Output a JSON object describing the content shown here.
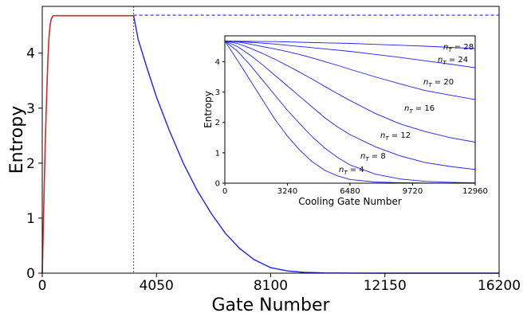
{
  "chart_data": [
    {
      "type": "line",
      "title": "",
      "xlabel": "Gate Number",
      "ylabel": "Entropy",
      "xlim": [
        0,
        16200
      ],
      "ylim": [
        0,
        4.85
      ],
      "xticks": [
        0,
        4050,
        8100,
        12150,
        16200
      ],
      "xtick_labels": [
        "0",
        "4050",
        "8100",
        "12150",
        "16200"
      ],
      "yticks": [
        0,
        1,
        2,
        3,
        4
      ],
      "ytick_labels": [
        "0",
        "1",
        "2",
        "3",
        "4"
      ],
      "vertical_marker_x": 3240,
      "colors": {
        "heating": "#d62728",
        "cooling": "#1f1fff",
        "reference": "#1f1fff",
        "marker": "#555555"
      },
      "series": [
        {
          "style": "solid-red",
          "x": [
            0,
            40,
            80,
            120,
            160,
            200,
            240,
            280,
            320,
            360,
            400,
            500,
            700,
            1000,
            1500,
            2000,
            2500,
            3000,
            3240
          ],
          "y": [
            0,
            0.9,
            1.8,
            2.6,
            3.3,
            3.9,
            4.3,
            4.52,
            4.62,
            4.66,
            4.68,
            4.68,
            4.68,
            4.68,
            4.68,
            4.68,
            4.68,
            4.68,
            4.68
          ]
        },
        {
          "style": "dashed-blue",
          "x": [
            3240,
            16200
          ],
          "y": [
            4.69,
            4.69
          ]
        },
        {
          "style": "solid-blue",
          "x": [
            3240,
            3400,
            3700,
            4050,
            4500,
            5000,
            5500,
            6000,
            6500,
            7000,
            7500,
            8100,
            8700,
            9300,
            10000,
            11000,
            12150,
            16200
          ],
          "y": [
            4.68,
            4.25,
            3.75,
            3.2,
            2.6,
            2.0,
            1.5,
            1.08,
            0.72,
            0.45,
            0.25,
            0.1,
            0.04,
            0.015,
            0.005,
            0.001,
            0.0,
            0.0
          ]
        }
      ]
    },
    {
      "type": "line",
      "title": "",
      "xlabel": "Cooling Gate Number",
      "ylabel": "Entropy",
      "xlim": [
        0,
        12960
      ],
      "ylim": [
        0,
        4.85
      ],
      "xticks": [
        0,
        3240,
        6480,
        9720,
        12960
      ],
      "xtick_labels": [
        "0",
        "3240",
        "6480",
        "9720",
        "12960"
      ],
      "yticks": [
        0,
        1,
        2,
        3,
        4
      ],
      "ytick_labels": [
        "0",
        "1",
        "2",
        "3",
        "4"
      ],
      "line_color": "#1f1fff",
      "series_labels_prefix": "n",
      "series_labels_sub": "T",
      "series": [
        {
          "label_value": "= 4",
          "x": [
            0,
            648,
            1296,
            1944,
            2592,
            3240,
            3888,
            4536,
            5184,
            5832,
            6480,
            7776,
            9072,
            10368,
            11664,
            12960
          ],
          "y": [
            4.68,
            4.05,
            3.4,
            2.75,
            2.1,
            1.55,
            1.08,
            0.7,
            0.42,
            0.24,
            0.12,
            0.04,
            0.015,
            0.005,
            0.001,
            0.0
          ]
        },
        {
          "label_value": "= 8",
          "x": [
            0,
            648,
            1296,
            1944,
            2592,
            3240,
            3888,
            4536,
            5184,
            5832,
            6480,
            7776,
            9072,
            10368,
            11664,
            12960
          ],
          "y": [
            4.68,
            4.35,
            3.9,
            3.4,
            2.9,
            2.4,
            1.95,
            1.52,
            1.15,
            0.85,
            0.6,
            0.3,
            0.14,
            0.06,
            0.03,
            0.01
          ]
        },
        {
          "label_value": "= 12",
          "x": [
            0,
            648,
            1296,
            1944,
            2592,
            3240,
            3888,
            4536,
            5184,
            5832,
            6480,
            7776,
            9072,
            10368,
            11664,
            12960
          ],
          "y": [
            4.68,
            4.5,
            4.22,
            3.9,
            3.55,
            3.2,
            2.85,
            2.5,
            2.15,
            1.85,
            1.6,
            1.2,
            0.9,
            0.68,
            0.55,
            0.45
          ]
        },
        {
          "label_value": "= 16",
          "x": [
            0,
            648,
            1296,
            1944,
            2592,
            3240,
            3888,
            4536,
            5184,
            5832,
            6480,
            7776,
            9072,
            10368,
            11664,
            12960
          ],
          "y": [
            4.68,
            4.6,
            4.45,
            4.27,
            4.08,
            3.87,
            3.65,
            3.42,
            3.18,
            2.95,
            2.72,
            2.3,
            1.95,
            1.7,
            1.5,
            1.35
          ]
        },
        {
          "label_value": "= 20",
          "x": [
            0,
            648,
            1296,
            1944,
            2592,
            3240,
            3888,
            4536,
            5184,
            5832,
            6480,
            7776,
            9072,
            10368,
            11664,
            12960
          ],
          "y": [
            4.68,
            4.65,
            4.58,
            4.5,
            4.42,
            4.33,
            4.23,
            4.12,
            4.0,
            3.88,
            3.75,
            3.5,
            3.27,
            3.05,
            2.9,
            2.75
          ]
        },
        {
          "label_value": "= 24",
          "x": [
            0,
            1296,
            2592,
            3888,
            5184,
            6480,
            7776,
            9072,
            10368,
            11664,
            12960
          ],
          "y": [
            4.68,
            4.64,
            4.58,
            4.5,
            4.42,
            4.34,
            4.24,
            4.14,
            4.03,
            3.92,
            3.8
          ]
        },
        {
          "label_value": "= 28",
          "x": [
            0,
            1296,
            2592,
            3888,
            5184,
            6480,
            7776,
            9072,
            10368,
            11664,
            12960
          ],
          "y": [
            4.68,
            4.67,
            4.66,
            4.64,
            4.62,
            4.6,
            4.57,
            4.54,
            4.51,
            4.47,
            4.43
          ]
        }
      ]
    }
  ]
}
